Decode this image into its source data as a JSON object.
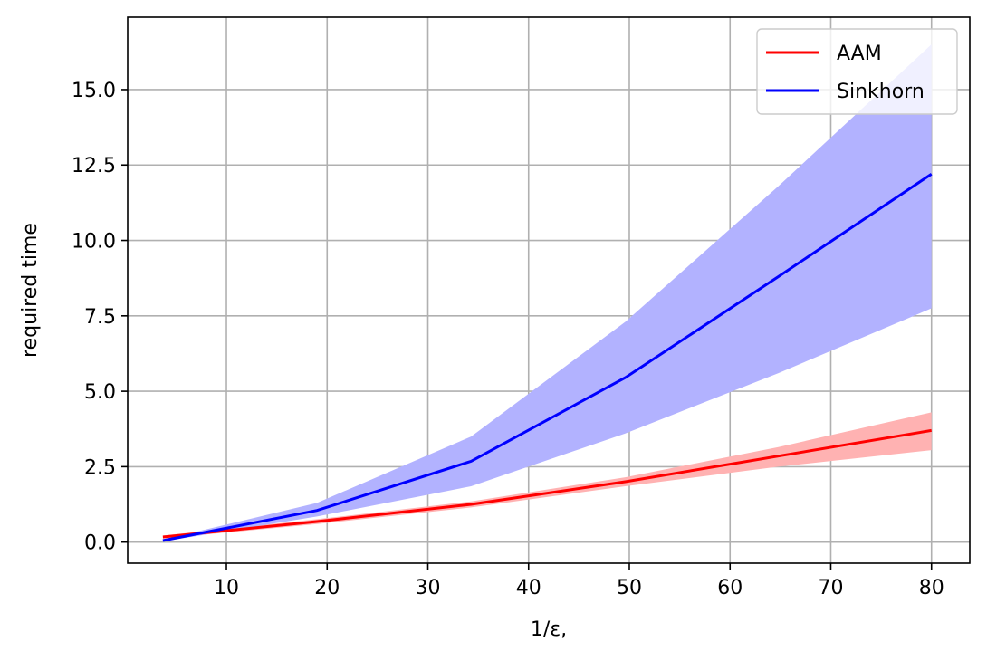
{
  "chart_data": {
    "type": "line",
    "title": "",
    "xlabel": "1/ε,",
    "ylabel": "required time",
    "xlim": [
      0.2,
      83.8
    ],
    "ylim": [
      -0.7,
      17.4
    ],
    "grid": true,
    "legend_position": "top-right",
    "x_ticks": [
      10,
      20,
      30,
      40,
      50,
      60,
      70,
      80
    ],
    "x_tick_labels": [
      "10",
      "20",
      "30",
      "40",
      "50",
      "60",
      "70",
      "80"
    ],
    "y_ticks": [
      0,
      2.5,
      5,
      7.5,
      10,
      12.5,
      15
    ],
    "y_tick_labels": [
      "0.0",
      "2.5",
      "5.0",
      "7.5",
      "10.0",
      "12.5",
      "15.0"
    ],
    "x": [
      3.7,
      19.0,
      34.3,
      49.6,
      64.8,
      80.0
    ],
    "series": [
      {
        "name": "AAM",
        "color": "#ff0000",
        "band_color": "#ffb2b2",
        "values": [
          0.17,
          0.68,
          1.25,
          2.0,
          2.85,
          3.7
        ],
        "lower": [
          0.12,
          0.6,
          1.15,
          1.85,
          2.5,
          3.05
        ],
        "upper": [
          0.22,
          0.76,
          1.35,
          2.15,
          3.15,
          4.3
        ]
      },
      {
        "name": "Sinkhorn",
        "color": "#0000ff",
        "band_color": "#b2b2ff",
        "values": [
          0.05,
          1.05,
          2.68,
          5.45,
          8.8,
          12.2
        ],
        "lower": [
          0.02,
          0.85,
          1.85,
          3.6,
          5.6,
          7.75
        ],
        "upper": [
          0.08,
          1.3,
          3.5,
          7.3,
          11.8,
          16.5
        ]
      }
    ]
  }
}
